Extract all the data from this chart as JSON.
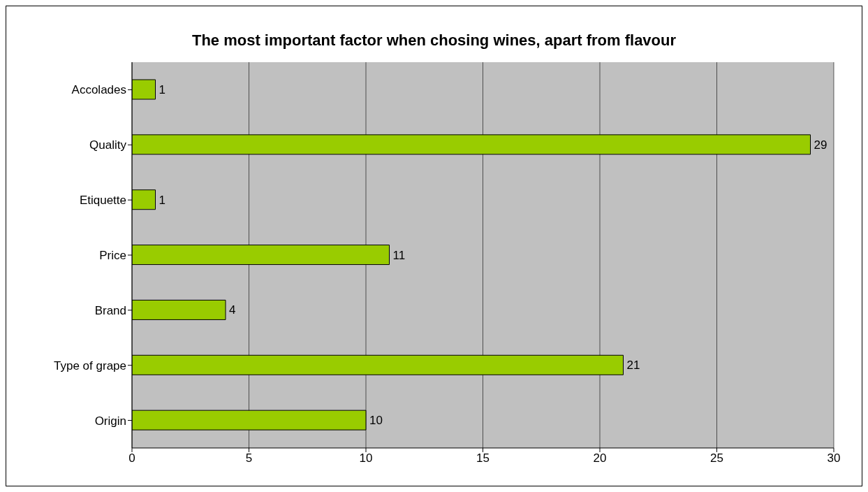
{
  "chart_data": {
    "type": "bar",
    "orientation": "horizontal",
    "title": "The most important factor when chosing wines, apart from flavour",
    "categories": [
      "Accolades",
      "Quality",
      "Etiquette",
      "Price",
      "Brand",
      "Type of grape",
      "Origin"
    ],
    "values": [
      1,
      29,
      1,
      11,
      4,
      21,
      10
    ],
    "color": "#99cc00",
    "xlim": [
      0,
      30
    ],
    "xticks": [
      0,
      5,
      10,
      15,
      20,
      25,
      30
    ],
    "grid": "x",
    "data_labels": true,
    "legend": false
  }
}
